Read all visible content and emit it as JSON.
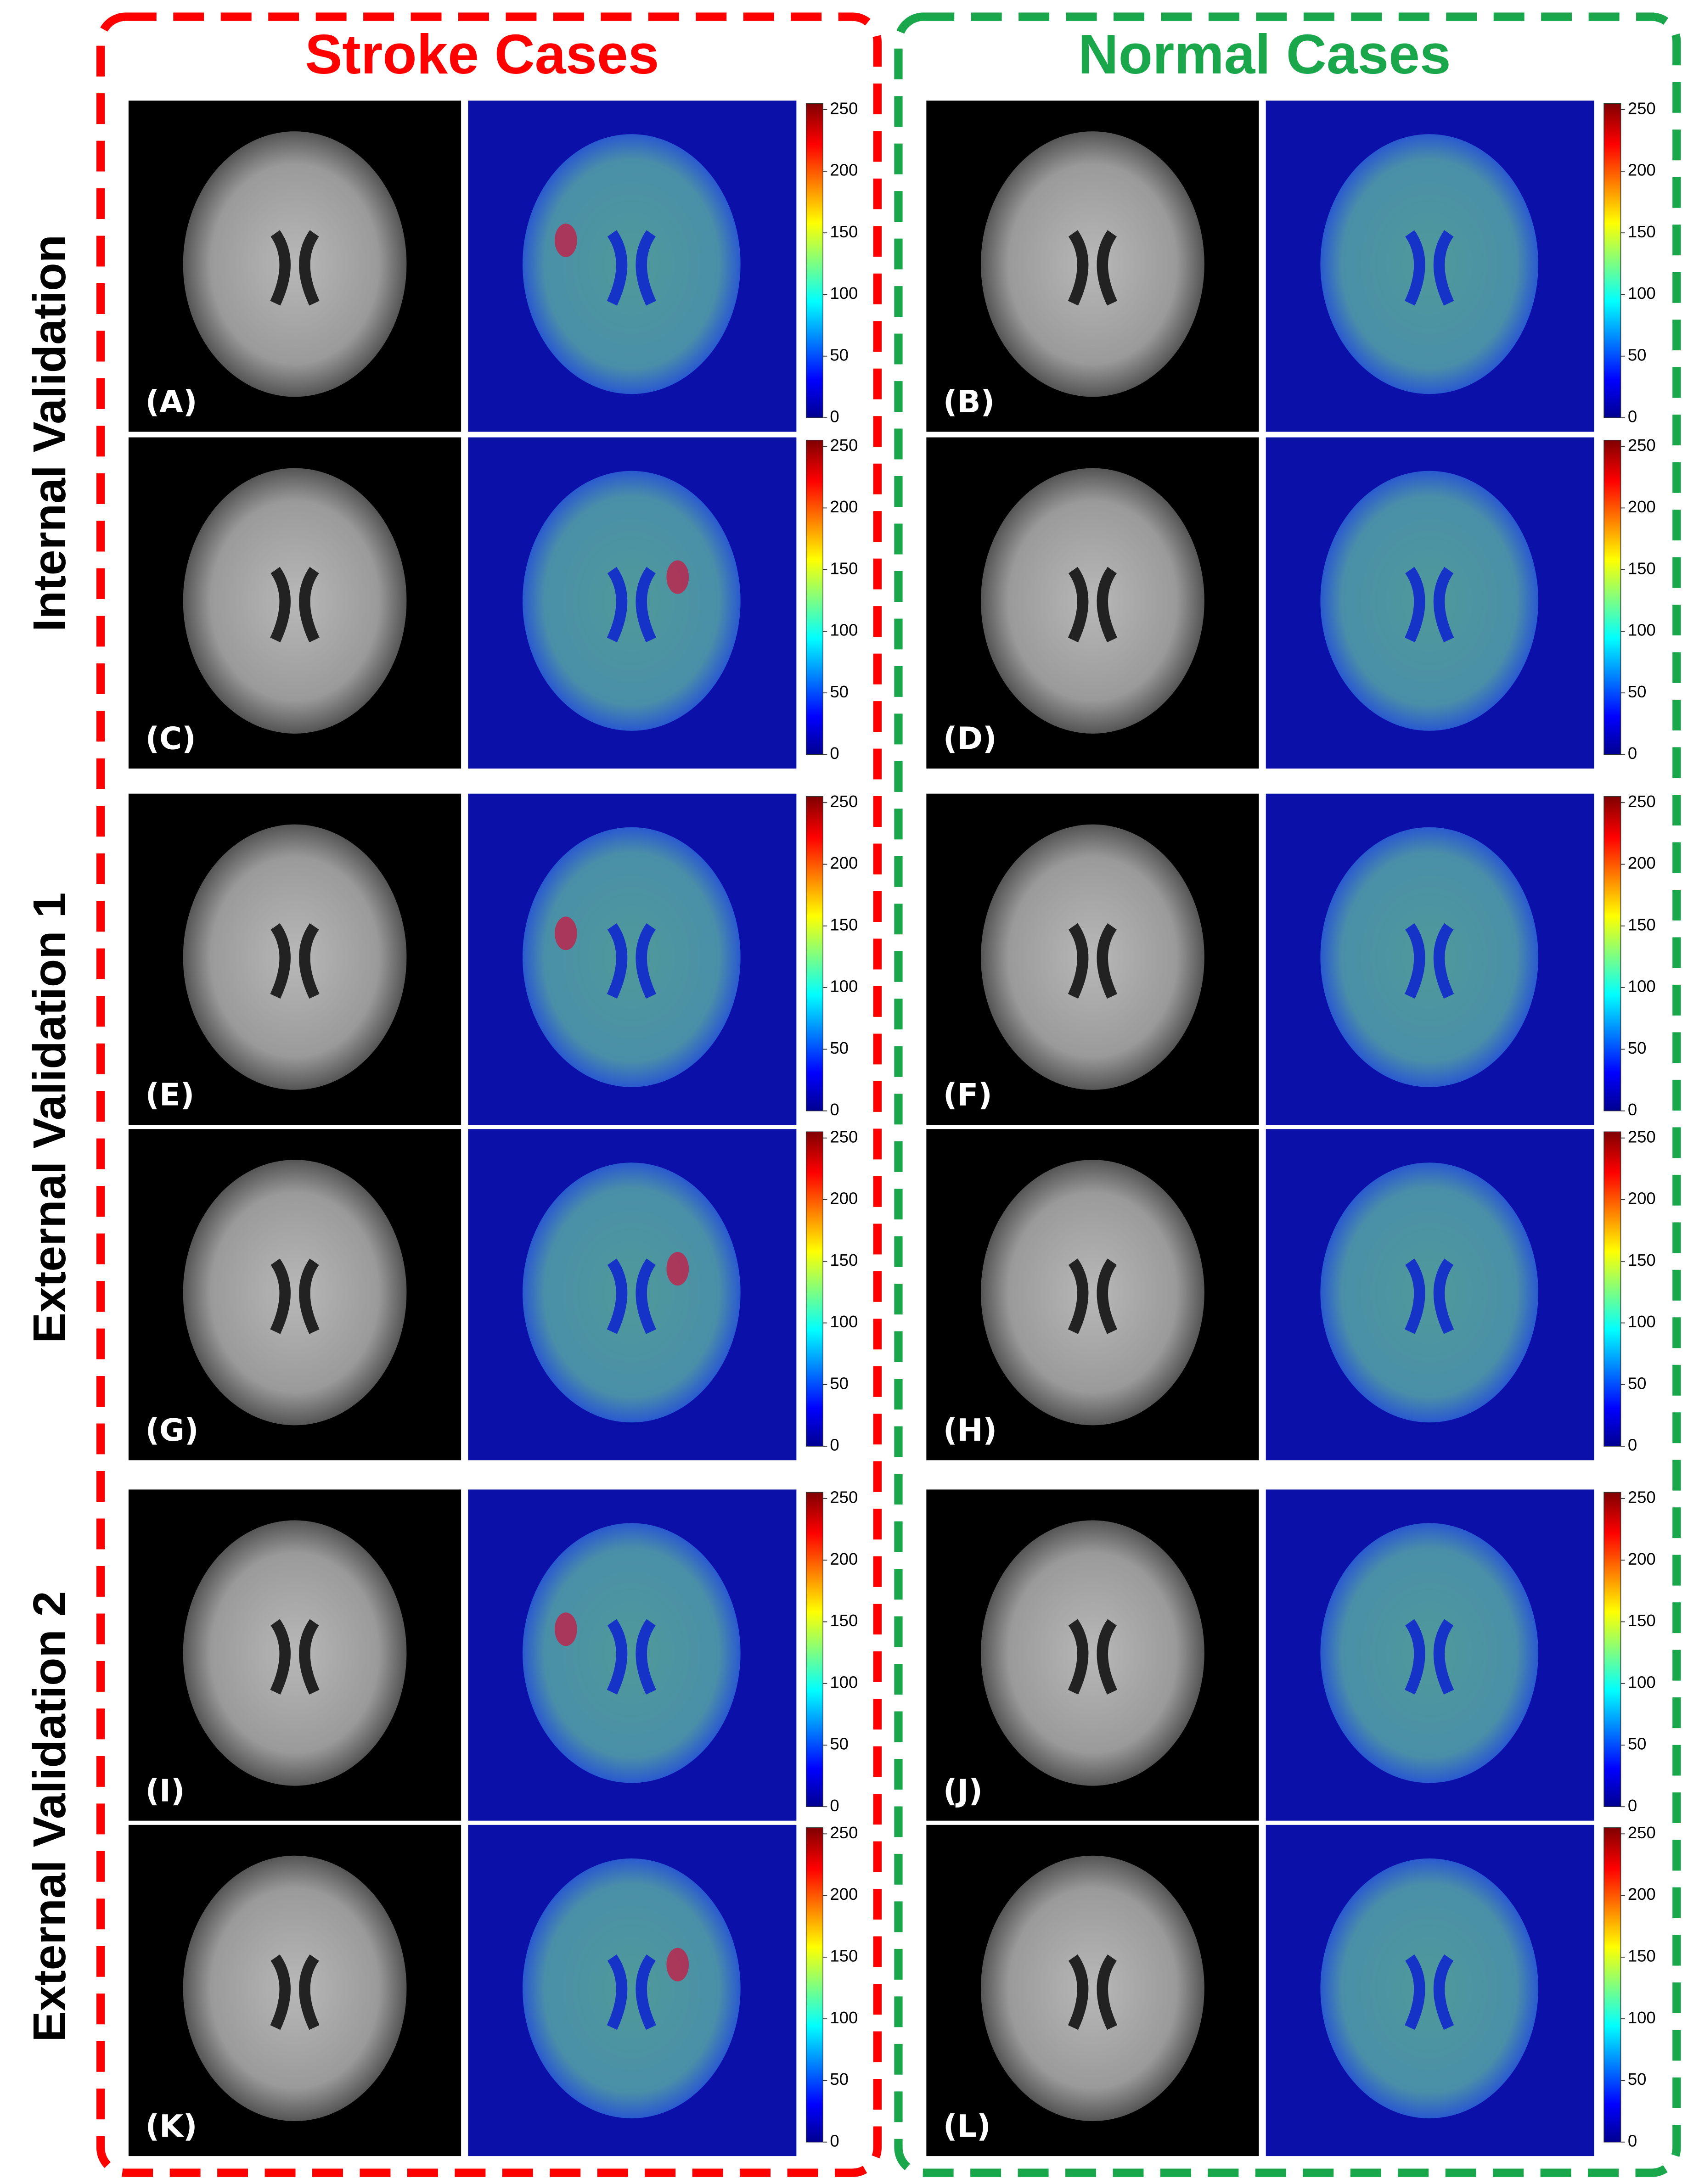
{
  "sections": [
    {
      "title": "Stroke Cases"
    },
    {
      "title": "Normal Cases"
    }
  ],
  "rows": [
    "Internal Validation",
    "External Validation 1",
    "External Validation 2"
  ],
  "panels": [
    {
      "label": "(A)"
    },
    {
      "label": "(B)"
    },
    {
      "label": "(C)"
    },
    {
      "label": "(D)"
    },
    {
      "label": "(E)"
    },
    {
      "label": "(F)"
    },
    {
      "label": "(G)"
    },
    {
      "label": "(H)"
    },
    {
      "label": "(I)"
    },
    {
      "label": "(J)"
    },
    {
      "label": "(K)"
    },
    {
      "label": "(L)"
    }
  ],
  "colorbar": {
    "range": [
      0,
      255
    ],
    "ticks": [
      0,
      50,
      100,
      150,
      200,
      250
    ]
  }
}
